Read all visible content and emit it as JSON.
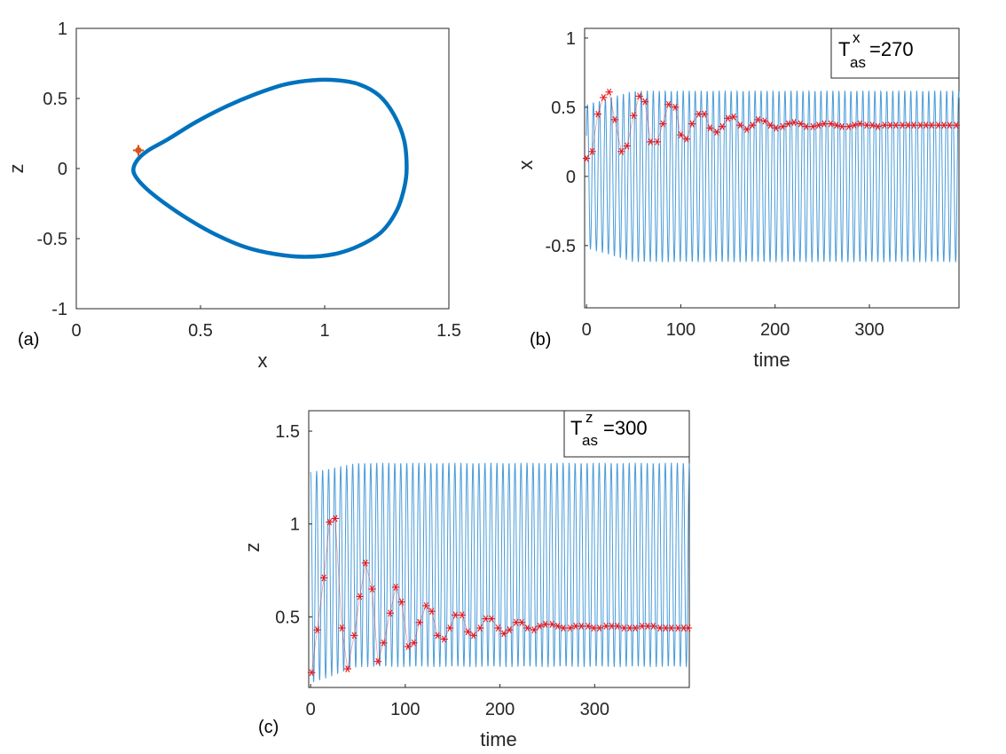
{
  "colors": {
    "curve": "#0072BD",
    "signal": "#4A9BD8",
    "marker": "#E8151B",
    "point": "#D95319",
    "axis": "#262626"
  },
  "chart_data": [
    {
      "panel_label": "(a)",
      "type": "line",
      "title": "",
      "xlabel": "x",
      "ylabel": "z",
      "xlim": [
        0,
        1.5
      ],
      "ylim": [
        -1,
        1
      ],
      "xticks": [
        "0",
        "0.5",
        "1",
        "1.5"
      ],
      "yticks": [
        "-1",
        "-0.5",
        "0",
        "0.5",
        "1"
      ],
      "series": [
        {
          "name": "limit cycle",
          "x": [
            1.33,
            1.32,
            1.28,
            1.22,
            1.14,
            1.05,
            0.95,
            0.84,
            0.72,
            0.6,
            0.48,
            0.37,
            0.29,
            0.25,
            0.23,
            0.24,
            0.28,
            0.35,
            0.45,
            0.56,
            0.68,
            0.8,
            0.92,
            1.04,
            1.14,
            1.23,
            1.29,
            1.32,
            1.33
          ],
          "y": [
            0.0,
            0.2,
            0.38,
            0.52,
            0.6,
            0.63,
            0.63,
            0.6,
            0.53,
            0.44,
            0.33,
            0.21,
            0.13,
            0.07,
            0.0,
            -0.06,
            -0.14,
            -0.24,
            -0.36,
            -0.47,
            -0.56,
            -0.61,
            -0.63,
            -0.61,
            -0.55,
            -0.45,
            -0.3,
            -0.14,
            0.0
          ]
        }
      ],
      "points": [
        {
          "name": "start point",
          "x": 0.25,
          "y": 0.13
        }
      ]
    },
    {
      "panel_label": "(b)",
      "type": "line",
      "title": "",
      "xlabel": "time",
      "ylabel": "x",
      "xlim": [
        -2,
        395
      ],
      "ylim": [
        -0.95,
        1.07
      ],
      "xticks": [
        "0",
        "100",
        "200",
        "300"
      ],
      "yticks": [
        "-0.5",
        "0",
        "0.5",
        "1"
      ],
      "legend": {
        "base": "T",
        "sub": "as",
        "sup": "x",
        "value": "=270",
        "position": "top-right"
      },
      "signal": {
        "name": "x(t)",
        "period": 6.35,
        "mean": 0.0,
        "amplitude_final": 0.62,
        "amplitude_start": 0.52,
        "t_end": 395
      },
      "markers": {
        "name": "running average",
        "t": [
          0,
          6,
          12,
          18,
          24,
          30,
          37,
          43,
          50,
          56,
          62,
          68,
          75,
          81,
          87,
          94,
          100,
          106,
          112,
          119,
          125,
          131,
          138,
          144,
          150,
          156,
          163,
          170,
          176,
          182,
          189,
          195,
          201,
          208,
          214,
          220,
          227,
          233,
          240,
          246,
          252,
          259,
          265,
          271,
          278,
          284,
          290,
          297,
          303,
          309,
          316,
          322,
          328,
          335,
          341,
          347,
          354,
          360,
          366,
          373,
          379,
          385,
          392
        ],
        "values": [
          0.13,
          0.18,
          0.45,
          0.57,
          0.61,
          0.41,
          0.18,
          0.22,
          0.44,
          0.58,
          0.54,
          0.25,
          0.25,
          0.38,
          0.52,
          0.5,
          0.3,
          0.27,
          0.38,
          0.45,
          0.45,
          0.35,
          0.32,
          0.36,
          0.42,
          0.43,
          0.37,
          0.34,
          0.37,
          0.41,
          0.4,
          0.37,
          0.35,
          0.36,
          0.38,
          0.39,
          0.38,
          0.36,
          0.36,
          0.37,
          0.38,
          0.38,
          0.37,
          0.36,
          0.36,
          0.37,
          0.38,
          0.37,
          0.37,
          0.36,
          0.37,
          0.37,
          0.37,
          0.37,
          0.37,
          0.37,
          0.37,
          0.37,
          0.37,
          0.37,
          0.37,
          0.37,
          0.37
        ]
      }
    },
    {
      "panel_label": "(c)",
      "type": "line",
      "title": "",
      "xlabel": "time",
      "ylabel": "z",
      "xlim": [
        -2,
        400
      ],
      "ylim": [
        0.12,
        1.61
      ],
      "xticks": [
        "0",
        "100",
        "200",
        "300"
      ],
      "yticks": [
        "0.5",
        "1",
        "1.5"
      ],
      "legend": {
        "base": "T",
        "sub": "as",
        "sup": "z",
        "value": "=300",
        "position": "top-right"
      },
      "signal": {
        "name": "z(t)",
        "period": 6.35,
        "max_final": 1.33,
        "min_final": 0.23,
        "max_start": 1.28,
        "min_start": 0.14,
        "t_end": 400
      },
      "markers": {
        "name": "running average",
        "t": [
          1,
          7,
          14,
          20,
          26,
          33,
          39,
          46,
          52,
          58,
          65,
          71,
          77,
          84,
          90,
          96,
          103,
          109,
          115,
          122,
          128,
          134,
          141,
          147,
          153,
          160,
          166,
          172,
          179,
          185,
          191,
          198,
          204,
          210,
          217,
          223,
          229,
          236,
          242,
          248,
          255,
          261,
          267,
          274,
          280,
          286,
          293,
          299,
          305,
          312,
          318,
          324,
          331,
          337,
          343,
          350,
          356,
          362,
          369,
          375,
          381,
          388,
          394,
          399
        ],
        "values": [
          0.2,
          0.43,
          0.71,
          1.01,
          1.03,
          0.44,
          0.22,
          0.4,
          0.61,
          0.79,
          0.65,
          0.26,
          0.36,
          0.52,
          0.66,
          0.58,
          0.34,
          0.36,
          0.47,
          0.56,
          0.53,
          0.4,
          0.38,
          0.44,
          0.51,
          0.51,
          0.42,
          0.4,
          0.44,
          0.49,
          0.49,
          0.44,
          0.41,
          0.43,
          0.47,
          0.47,
          0.44,
          0.43,
          0.45,
          0.46,
          0.46,
          0.45,
          0.44,
          0.44,
          0.45,
          0.45,
          0.45,
          0.44,
          0.44,
          0.45,
          0.45,
          0.45,
          0.44,
          0.44,
          0.44,
          0.45,
          0.45,
          0.45,
          0.44,
          0.44,
          0.44,
          0.44,
          0.44,
          0.44
        ]
      }
    }
  ]
}
